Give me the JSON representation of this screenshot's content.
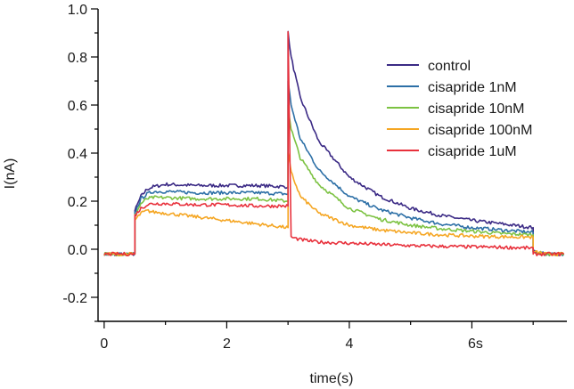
{
  "chart_data": {
    "type": "line",
    "title": "",
    "xlabel": "time(s)",
    "ylabel": "I(nA)",
    "xlim": [
      -0.1,
      7.55
    ],
    "ylim": [
      -0.3,
      1.0
    ],
    "x_ticks": [
      {
        "value": 0,
        "label": "0"
      },
      {
        "value": 2,
        "label": "2"
      },
      {
        "value": 4,
        "label": "4"
      },
      {
        "value": 6,
        "label": "6s"
      }
    ],
    "x_minor_ticks": [
      1,
      3,
      5,
      7
    ],
    "y_ticks": [
      {
        "value": -0.2,
        "label": "-0.2"
      },
      {
        "value": 0.0,
        "label": "0.0"
      },
      {
        "value": 0.2,
        "label": "0.2"
      },
      {
        "value": 0.4,
        "label": "0.4"
      },
      {
        "value": 0.6,
        "label": "0.6"
      },
      {
        "value": 0.8,
        "label": "0.8"
      },
      {
        "value": 1.0,
        "label": "1.0"
      }
    ],
    "y_minor_ticks": [
      -0.3,
      -0.1,
      0.1,
      0.3,
      0.5,
      0.7,
      0.9
    ],
    "grid": false,
    "legend_position": "top-right",
    "series": [
      {
        "name": "control",
        "color": "#3b2a85",
        "x": [
          0,
          0.5,
          0.5,
          0.6,
          0.7,
          0.8,
          1.0,
          1.5,
          2.0,
          2.5,
          3.0,
          3.0,
          3.05,
          3.2,
          3.5,
          4.0,
          4.5,
          5.0,
          5.5,
          6.0,
          6.5,
          7.0,
          7.0,
          7.1,
          7.2,
          7.5
        ],
        "y": [
          -0.02,
          -0.02,
          0.16,
          0.22,
          0.25,
          0.26,
          0.27,
          0.265,
          0.265,
          0.265,
          0.26,
          0.9,
          0.8,
          0.63,
          0.45,
          0.3,
          0.22,
          0.17,
          0.14,
          0.12,
          0.105,
          0.09,
          -0.01,
          -0.015,
          -0.02,
          -0.02
        ]
      },
      {
        "name": "cisapride 1nM",
        "color": "#2c6fa6",
        "x": [
          0,
          0.5,
          0.5,
          0.6,
          0.7,
          0.8,
          1.0,
          1.5,
          2.0,
          2.5,
          3.0,
          3.0,
          3.05,
          3.2,
          3.5,
          4.0,
          4.5,
          5.0,
          5.5,
          6.0,
          6.5,
          7.0,
          7.0,
          7.1,
          7.2,
          7.5
        ],
        "y": [
          -0.02,
          -0.02,
          0.15,
          0.21,
          0.23,
          0.24,
          0.24,
          0.235,
          0.235,
          0.235,
          0.23,
          0.7,
          0.6,
          0.46,
          0.33,
          0.22,
          0.165,
          0.13,
          0.105,
          0.09,
          0.08,
          0.07,
          -0.01,
          -0.015,
          -0.02,
          -0.02
        ]
      },
      {
        "name": "cisapride 10nM",
        "color": "#7cc242",
        "x": [
          0,
          0.5,
          0.5,
          0.6,
          0.7,
          0.8,
          1.0,
          1.5,
          2.0,
          2.5,
          3.0,
          3.0,
          3.05,
          3.2,
          3.5,
          4.0,
          4.5,
          5.0,
          5.5,
          6.0,
          6.5,
          7.0,
          7.0,
          7.1,
          7.2,
          7.5
        ],
        "y": [
          -0.02,
          -0.02,
          0.14,
          0.19,
          0.21,
          0.215,
          0.215,
          0.21,
          0.21,
          0.21,
          0.2,
          0.6,
          0.5,
          0.38,
          0.27,
          0.17,
          0.125,
          0.1,
          0.085,
          0.075,
          0.065,
          0.06,
          -0.01,
          -0.015,
          -0.02,
          -0.02
        ]
      },
      {
        "name": "cisapride 100nM",
        "color": "#f5a623",
        "x": [
          0,
          0.5,
          0.5,
          0.6,
          0.7,
          0.8,
          1.0,
          1.5,
          2.0,
          2.5,
          3.0,
          3.0,
          3.05,
          3.2,
          3.5,
          4.0,
          4.5,
          5.0,
          5.5,
          6.0,
          6.5,
          7.0,
          7.0,
          7.1,
          7.2,
          7.5
        ],
        "y": [
          -0.02,
          -0.02,
          0.12,
          0.15,
          0.16,
          0.155,
          0.15,
          0.135,
          0.12,
          0.105,
          0.09,
          0.4,
          0.32,
          0.22,
          0.15,
          0.1,
          0.08,
          0.068,
          0.06,
          0.055,
          0.052,
          0.05,
          -0.01,
          -0.015,
          -0.02,
          -0.02
        ]
      },
      {
        "name": "cisapride 1uM",
        "color": "#e8313c",
        "x": [
          0,
          0.5,
          0.5,
          0.6,
          0.7,
          0.8,
          1.0,
          1.5,
          2.0,
          2.5,
          3.0,
          3.0,
          3.05,
          3.2,
          3.5,
          4.0,
          4.5,
          5.0,
          5.5,
          6.0,
          6.5,
          7.0,
          7.0,
          7.1,
          7.2,
          7.5
        ],
        "y": [
          -0.02,
          -0.02,
          0.14,
          0.17,
          0.185,
          0.19,
          0.19,
          0.185,
          0.185,
          0.18,
          0.18,
          0.9,
          0.05,
          0.04,
          0.03,
          0.025,
          0.02,
          0.015,
          0.012,
          0.01,
          0.008,
          0.005,
          -0.02,
          -0.02,
          -0.02,
          -0.02
        ]
      }
    ]
  }
}
